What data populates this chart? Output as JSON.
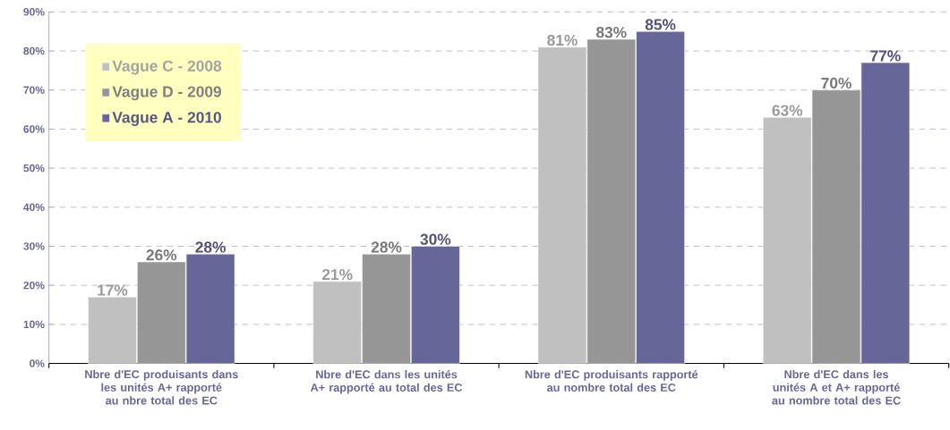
{
  "chart_data": {
    "type": "bar",
    "categories": [
      "Nbre d'EC produisants dans les unités A+ rapporté au nbre total des EC",
      "Nbre d'EC dans les unités A+ rapporté au total des EC",
      "Nbre d'EC produisants rapporté au nombre total des EC",
      "Nbre d'EC dans les unités A et A+ rapporté au nombre total des EC"
    ],
    "series": [
      {
        "name": "Vague C - 2008",
        "color": "#c0c0c0",
        "values": [
          17,
          21,
          81,
          63
        ],
        "value_labels": [
          "17%",
          "21%",
          "81%",
          "63%"
        ]
      },
      {
        "name": "Vague D - 2009",
        "color": "#969696",
        "values": [
          26,
          28,
          83,
          70
        ],
        "value_labels": [
          "26%",
          "28%",
          "83%",
          "70%"
        ]
      },
      {
        "name": "Vague A - 2010",
        "color": "#666699",
        "values": [
          28,
          30,
          85,
          77
        ],
        "value_labels": [
          "28%",
          "30%",
          "85%",
          "77%"
        ]
      }
    ],
    "ylim": [
      0,
      90
    ],
    "yticks": [
      {
        "value": 0,
        "label": "0%"
      },
      {
        "value": 10,
        "label": "10%"
      },
      {
        "value": 20,
        "label": "20%"
      },
      {
        "value": 30,
        "label": "30%"
      },
      {
        "value": 40,
        "label": "40%"
      },
      {
        "value": 50,
        "label": "50%"
      },
      {
        "value": 60,
        "label": "60%"
      },
      {
        "value": 70,
        "label": "70%"
      },
      {
        "value": 80,
        "label": "80%"
      },
      {
        "value": 90,
        "label": "90%"
      }
    ],
    "grid": "y",
    "legend": "top left"
  }
}
